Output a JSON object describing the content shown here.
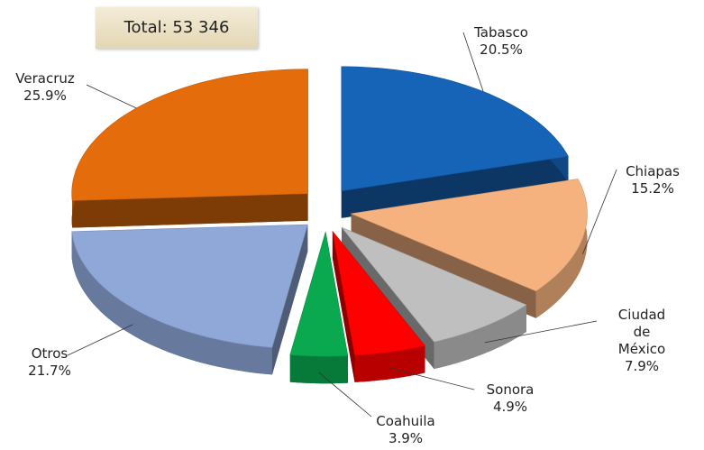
{
  "chart_data": {
    "type": "pie",
    "annotation": "Total: 53 346",
    "categories": [
      "Tabasco",
      "Chiapas",
      "Ciudad de México",
      "Sonora",
      "Coahuila",
      "Otros",
      "Veracruz"
    ],
    "values": [
      20.5,
      15.2,
      7.9,
      4.9,
      3.9,
      21.7,
      25.9
    ],
    "value_labels": [
      "20.5%",
      "15.2%",
      "7.9%",
      "4.9%",
      "3.9%",
      "21.7%",
      "25.9%"
    ],
    "colors": [
      "#1664b8",
      "#f5b27f",
      "#bfbfbf",
      "#ff0000",
      "#0aa84f",
      "#8fa8d8",
      "#e46c0a"
    ]
  }
}
